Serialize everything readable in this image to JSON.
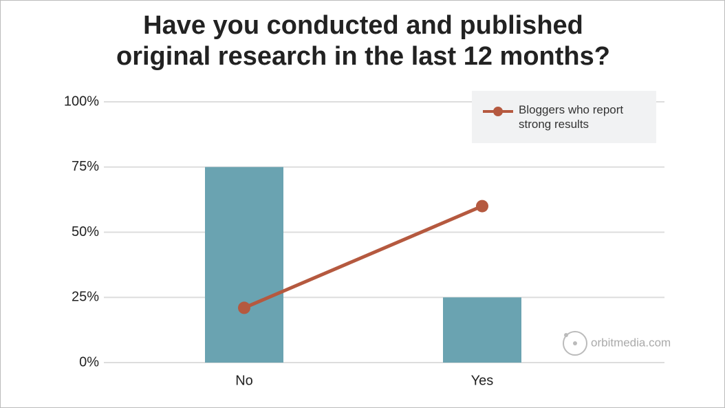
{
  "chart_data": {
    "type": "bar-line",
    "title": [
      "Have you conducted and published",
      "original research in the last 12 months?"
    ],
    "categories": [
      "No",
      "Yes"
    ],
    "series": [
      {
        "type": "bar",
        "color": "#6aa3b1",
        "values": [
          75,
          25
        ]
      },
      {
        "type": "line",
        "name": "Bloggers who report strong results",
        "color": "#b5593f",
        "values": [
          21,
          60
        ]
      }
    ],
    "ylim": [
      0,
      100
    ],
    "yticks": [
      {
        "value": 0,
        "label": "0%"
      },
      {
        "value": 25,
        "label": "25%"
      },
      {
        "value": 50,
        "label": "50%"
      },
      {
        "value": 75,
        "label": "75%"
      },
      {
        "value": 100,
        "label": "100%"
      }
    ],
    "grid": true,
    "legend": "top-right",
    "watermark": "orbitmedia.com"
  }
}
